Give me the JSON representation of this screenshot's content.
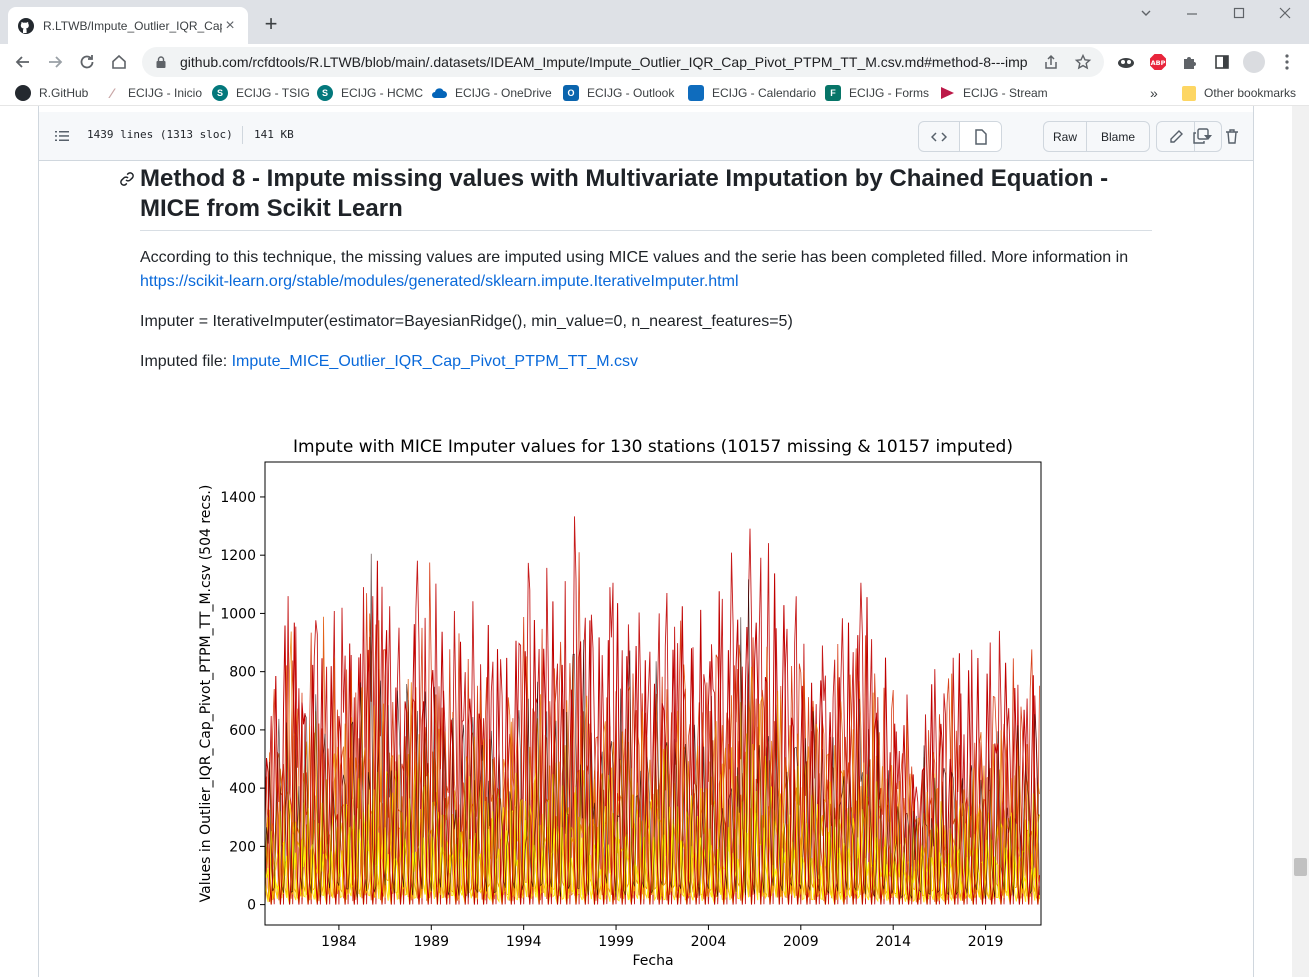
{
  "browser": {
    "tab_title": "R.LTWB/Impute_Outlier_IQR_Cap",
    "tab_close": "×",
    "new_tab": "+",
    "url": "github.com/rcfdtools/R.LTWB/blob/main/.datasets/IDEAM_Impute/Impute_Outlier_IQR_Cap_Pivot_PTPM_TT_M.csv.md#method-8---imput…",
    "bookmarks": [
      {
        "label": "R.GitHub",
        "color": "#24292f"
      },
      {
        "label": "ECIJG - Inicio",
        "color": "#c9a7a7"
      },
      {
        "label": "ECIJG - TSIG",
        "color": "#03787c"
      },
      {
        "label": "ECIJG - HCMC",
        "color": "#03787c"
      },
      {
        "label": "ECIJG - OneDrive",
        "color": "#0364b8"
      },
      {
        "label": "ECIJG - Outlook",
        "color": "#0a64ad"
      },
      {
        "label": "ECIJG - Calendario",
        "color": "#0f6cbd"
      },
      {
        "label": "ECIJG - Forms",
        "color": "#077568"
      },
      {
        "label": "ECIJG - Stream",
        "color": "#bc1948"
      }
    ],
    "bookmarks_overflow": "»",
    "other_bookmarks": "Other bookmarks"
  },
  "file_header": {
    "lines": "1439 lines (1313 sloc)",
    "size": "141 KB",
    "raw": "Raw",
    "blame": "Blame"
  },
  "content": {
    "heading": "Method 8 - Impute missing values with Multivariate Imputation by Chained Equation - MICE from Scikit Learn",
    "para1_text": "According to this technique, the missing values are imputed using MICE values and the serie has been completed filled. More information in",
    "para1_link": "https://scikit-learn.org/stable/modules/generated/sklearn.impute.IterativeImputer.html",
    "para2": "Imputer = IterativeImputer(estimator=BayesianRidge(), min_value=0, n_nearest_features=5)",
    "para3_label": "Imputed file:",
    "para3_link": "Impute_MICE_Outlier_IQR_Cap_Pivot_PTPM_TT_M.csv"
  },
  "chart_data": {
    "type": "line",
    "title": "Impute with MICE Imputer values for 130 stations (10157 missing & 10157 imputed)",
    "xlabel": "Fecha",
    "ylabel": "Values in Outlier_IQR_Cap_Pivot_PTPM_TT_M.csv (504 recs.)",
    "xlim": [
      1980,
      2022
    ],
    "ylim": [
      -70,
      1520
    ],
    "x_ticks": [
      "1984",
      "1989",
      "1994",
      "1999",
      "2004",
      "2009",
      "2014",
      "2019"
    ],
    "y_ticks": [
      "0",
      "200",
      "400",
      "600",
      "800",
      "1000",
      "1200",
      "1400"
    ],
    "x_tick_values": [
      1984,
      1989,
      1994,
      1999,
      2004,
      2009,
      2014,
      2019
    ],
    "y_tick_values": [
      0,
      200,
      400,
      600,
      800,
      1000,
      1200,
      1400
    ],
    "series_colors": [
      "#c00000",
      "#d42a00",
      "#e05000",
      "#ea7a00",
      "#f2a000",
      "#f7c600",
      "#ffe000",
      "#fff200",
      "#1a0000"
    ],
    "envelope": {
      "x": [
        1980,
        1981.2,
        1982.5,
        1984,
        1985.1,
        1985.9,
        1987,
        1988.7,
        1990,
        1991.5,
        1993,
        1994.8,
        1996,
        1996.9,
        1998,
        1999,
        2000.4,
        2002,
        2003.5,
        2005,
        2005.9,
        2007,
        2008.3,
        2010,
        2011.5,
        2012,
        2013,
        2014.5,
        2016,
        2017.5,
        2019,
        2020,
        2021,
        2021.9
      ],
      "y": [
        720,
        1105,
        1050,
        1000,
        1130,
        1350,
        1100,
        1210,
        1000,
        1050,
        1000,
        1250,
        1000,
        1400,
        1030,
        1120,
        1080,
        1090,
        1050,
        1120,
        1440,
        1280,
        1080,
        1000,
        980,
        1130,
        1030,
        700,
        830,
        870,
        880,
        960,
        960,
        960
      ]
    }
  }
}
